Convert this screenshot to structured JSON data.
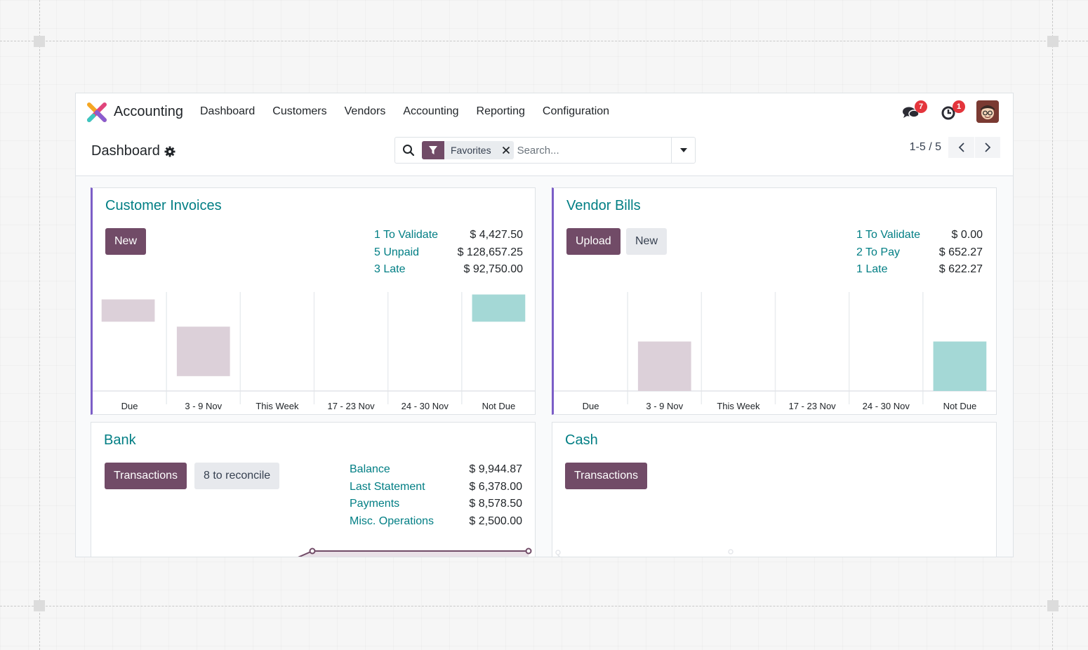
{
  "navbar": {
    "app_name": "Accounting",
    "menu": [
      "Dashboard",
      "Customers",
      "Vendors",
      "Accounting",
      "Reporting",
      "Configuration"
    ],
    "messages_count": "7",
    "activities_count": "1"
  },
  "control_panel": {
    "breadcrumb": "Dashboard",
    "search": {
      "facet": "Favorites",
      "placeholder": "Search..."
    },
    "pager": "1-5 / 5"
  },
  "colors": {
    "brand": "#714b67",
    "link": "#017e84",
    "accent_border": "#7c5ec7",
    "bar_past": "#dcd0d9",
    "bar_future": "#a4d8d6"
  },
  "cards": {
    "customer_invoices": {
      "title": "Customer Invoices",
      "new_label": "New",
      "stats": [
        {
          "label": "1 To Validate",
          "value": "$ 4,427.50"
        },
        {
          "label": "5 Unpaid",
          "value": "$ 128,657.25"
        },
        {
          "label": "3 Late",
          "value": "$ 92,750.00"
        }
      ]
    },
    "vendor_bills": {
      "title": "Vendor Bills",
      "upload_label": "Upload",
      "new_label": "New",
      "stats": [
        {
          "label": "1 To Validate",
          "value": "$ 0.00"
        },
        {
          "label": "2 To Pay",
          "value": "$ 652.27"
        },
        {
          "label": "1 Late",
          "value": "$ 622.27"
        }
      ]
    },
    "bank": {
      "title": "Bank",
      "transactions_label": "Transactions",
      "reconcile_label": "8 to reconcile",
      "stats": [
        {
          "label": "Balance",
          "value": "$ 9,944.87"
        },
        {
          "label": "Last Statement",
          "value": "$ 6,378.00"
        },
        {
          "label": "Payments",
          "value": "$ 8,578.50"
        },
        {
          "label": "Misc. Operations",
          "value": "$ 2,500.00"
        }
      ]
    },
    "cash": {
      "title": "Cash",
      "transactions_label": "Transactions"
    }
  },
  "chart_data": [
    {
      "type": "bar",
      "chart": "customer-invoices",
      "categories": [
        "Due",
        "3 - 9 Nov",
        "This Week",
        "17 - 23 Nov",
        "24 - 30 Nov",
        "Not Due"
      ],
      "series": [
        {
          "values": [
            [
              -2,
              7
            ],
            [
              -24,
              -4
            ],
            [
              0,
              0
            ],
            [
              0,
              0
            ],
            [
              0,
              0
            ],
            [
              -2,
              9
            ]
          ]
        }
      ],
      "bar_colors": [
        "#dcd0d9",
        "#dcd0d9",
        "#dcd0d9",
        "#dcd0d9",
        "#dcd0d9",
        "#a4d8d6"
      ],
      "ylim": [
        -30,
        10
      ]
    },
    {
      "type": "bar",
      "chart": "vendor-bills",
      "categories": [
        "Due",
        "3 - 9 Nov",
        "This Week",
        "17 - 23 Nov",
        "24 - 30 Nov",
        "Not Due"
      ],
      "series": [
        {
          "values": [
            0,
            70,
            0,
            0,
            0,
            70
          ]
        }
      ],
      "bar_colors": [
        "#dcd0d9",
        "#dcd0d9",
        "#dcd0d9",
        "#dcd0d9",
        "#dcd0d9",
        "#a4d8d6"
      ],
      "ylim": [
        0,
        140
      ]
    }
  ]
}
